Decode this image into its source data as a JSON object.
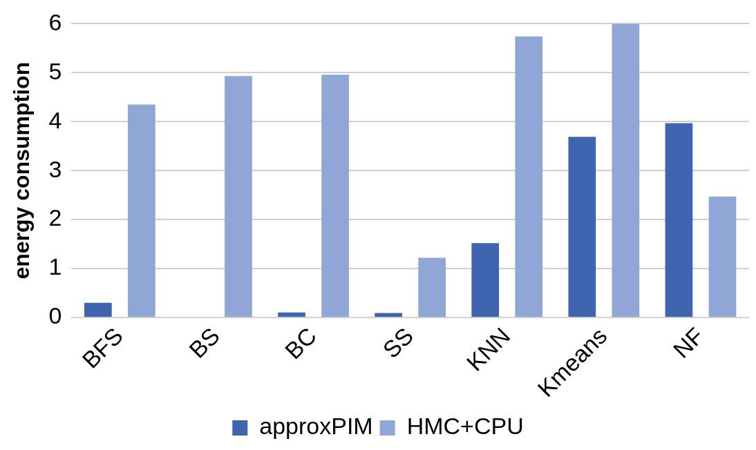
{
  "chart_data": {
    "type": "bar",
    "ylabel": "energy consumption",
    "categories": [
      "BFS",
      "BS",
      "BC",
      "SS",
      "KNN",
      "Kmeans",
      "NF"
    ],
    "series": [
      {
        "name": "approxPIM",
        "color": "#3f65b0",
        "values": [
          0.3,
          0,
          0.1,
          0.09,
          1.52,
          3.69,
          3.97
        ]
      },
      {
        "name": "HMC+CPU",
        "color": "#8fa6d6",
        "values": [
          4.35,
          4.93,
          4.96,
          1.22,
          5.74,
          6,
          2.47
        ]
      }
    ],
    "ylim": [
      0,
      6
    ],
    "yticks": [
      0,
      1,
      2,
      3,
      4,
      5,
      6
    ],
    "grid": "y",
    "legend": "bottom"
  }
}
